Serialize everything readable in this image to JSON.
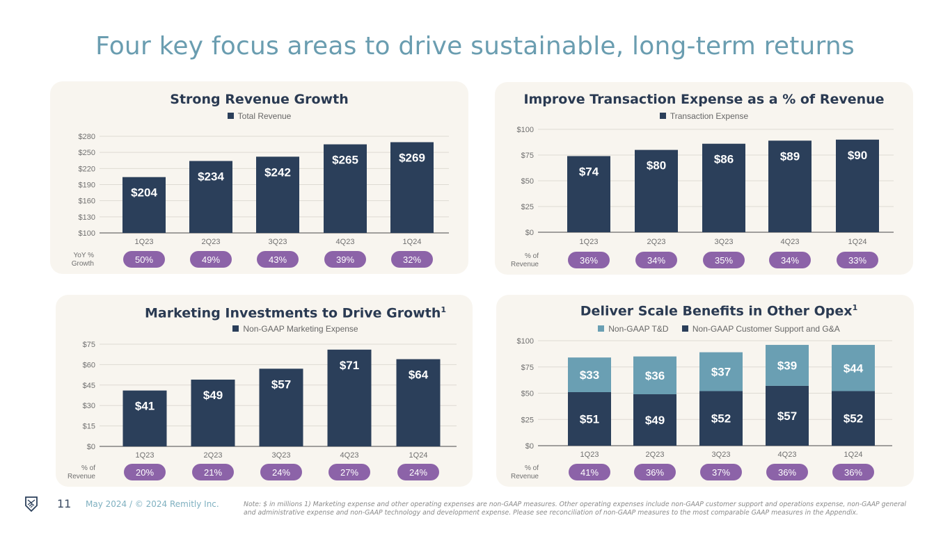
{
  "title": "Four key focus areas to drive sustainable, long-term returns",
  "footer": {
    "logo_icon": "remitly-shield-handshake-icon",
    "page_number": "11",
    "date_copyright": "May 2024 / © 2024 Remitly Inc.",
    "note": "Note: $ in millions  1) Marketing expense and other operating expenses are non-GAAP measures. Other operating expenses include non-GAAP customer support and operations expense, non-GAAP general and administrative expense and non-GAAP technology and development expense. Please see reconciliation of non-GAAP measures to the most comparable GAAP measures in the Appendix."
  },
  "colors": {
    "dark_bar": "#2b3f5a",
    "light_bar": "#6a9fb3",
    "pill": "#8c63a8",
    "panel_bg": "#f8f5ef",
    "title": "#6a9db0"
  },
  "chart_data": [
    {
      "id": "revenue",
      "type": "bar",
      "title": "Strong Revenue Growth",
      "superscript": "",
      "categories": [
        "1Q23",
        "2Q23",
        "3Q23",
        "4Q23",
        "1Q24"
      ],
      "series": [
        {
          "name": "Total Revenue",
          "values": [
            204,
            234,
            242,
            265,
            269
          ],
          "labels": [
            "$204",
            "$234",
            "$242",
            "$265",
            "$269"
          ],
          "color": "#2b3f5a"
        }
      ],
      "yticks": [
        100,
        130,
        160,
        190,
        220,
        250,
        280
      ],
      "ytick_labels": [
        "$100",
        "$130",
        "$160",
        "$190",
        "$220",
        "$250",
        "$280"
      ],
      "ylim": [
        100,
        280
      ],
      "xlabel": "",
      "ylabel": "",
      "grid": true,
      "legend": "top-center",
      "row_label": [
        "YoY %",
        "Growth"
      ],
      "row_values": [
        "50%",
        "49%",
        "43%",
        "39%",
        "32%"
      ]
    },
    {
      "id": "transaction",
      "type": "bar",
      "title": "Improve Transaction Expense as a % of Revenue",
      "superscript": "",
      "categories": [
        "1Q23",
        "2Q23",
        "3Q23",
        "4Q23",
        "1Q24"
      ],
      "series": [
        {
          "name": "Transaction Expense",
          "values": [
            74,
            80,
            86,
            89,
            90
          ],
          "labels": [
            "$74",
            "$80",
            "$86",
            "$89",
            "$90"
          ],
          "color": "#2b3f5a"
        }
      ],
      "yticks": [
        0,
        25,
        50,
        75,
        100
      ],
      "ytick_labels": [
        "$0",
        "$25",
        "$50",
        "$75",
        "$100"
      ],
      "ylim": [
        0,
        100
      ],
      "xlabel": "",
      "ylabel": "",
      "grid": true,
      "legend": "top-center",
      "row_label": [
        "% of",
        "Revenue"
      ],
      "row_values": [
        "36%",
        "34%",
        "35%",
        "34%",
        "33%"
      ]
    },
    {
      "id": "marketing",
      "type": "bar",
      "title": "Marketing Investments to Drive Growth",
      "superscript": "1",
      "categories": [
        "1Q23",
        "2Q23",
        "3Q23",
        "4Q23",
        "1Q24"
      ],
      "series": [
        {
          "name": "Non-GAAP Marketing Expense",
          "values": [
            41,
            49,
            57,
            71,
            64
          ],
          "labels": [
            "$41",
            "$49",
            "$57",
            "$71",
            "$64"
          ],
          "color": "#2b3f5a"
        }
      ],
      "yticks": [
        0,
        15,
        30,
        45,
        60,
        75
      ],
      "ytick_labels": [
        "$0",
        "$15",
        "$30",
        "$45",
        "$60",
        "$75"
      ],
      "ylim": [
        0,
        75
      ],
      "xlabel": "",
      "ylabel": "",
      "grid": true,
      "legend": "top-center",
      "row_label": [
        "% of",
        "Revenue"
      ],
      "row_values": [
        "20%",
        "21%",
        "24%",
        "27%",
        "24%"
      ]
    },
    {
      "id": "opex",
      "type": "bar",
      "stacked": true,
      "title": "Deliver Scale Benefits in Other Opex",
      "superscript": "1",
      "categories": [
        "1Q23",
        "2Q23",
        "3Q23",
        "4Q23",
        "1Q24"
      ],
      "series": [
        {
          "name": "Non-GAAP Customer Support and G&A",
          "values": [
            51,
            49,
            52,
            57,
            52
          ],
          "labels": [
            "$51",
            "$49",
            "$52",
            "$57",
            "$52"
          ],
          "color": "#2b3f5a"
        },
        {
          "name": "Non-GAAP T&D",
          "values": [
            33,
            36,
            37,
            39,
            44
          ],
          "labels": [
            "$33",
            "$36",
            "$37",
            "$39",
            "$44"
          ],
          "color": "#6a9fb3"
        }
      ],
      "legend_order": [
        "Non-GAAP T&D",
        "Non-GAAP Customer Support and G&A"
      ],
      "yticks": [
        0,
        25,
        50,
        75,
        100
      ],
      "ytick_labels": [
        "$0",
        "$25",
        "$50",
        "$75",
        "$100"
      ],
      "ylim": [
        0,
        100
      ],
      "xlabel": "",
      "ylabel": "",
      "grid": true,
      "legend": "top-center",
      "row_label": [
        "% of",
        "Revenue"
      ],
      "row_values": [
        "41%",
        "36%",
        "37%",
        "36%",
        "36%"
      ]
    }
  ]
}
